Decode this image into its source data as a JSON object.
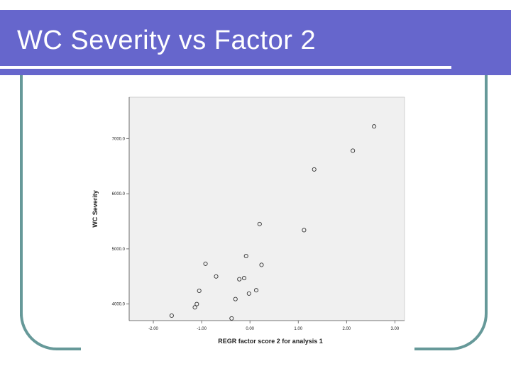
{
  "slide": {
    "title": "WC Severity vs Factor 2"
  },
  "colors": {
    "title_bar": "#6666cc",
    "frame": "#669999",
    "plot_background": "#f0f0f0",
    "marker": "#333333"
  },
  "chart_data": {
    "type": "scatter",
    "title": "",
    "xlabel": "REGR factor score   2 for analysis 1",
    "ylabel": "WC Severity",
    "xlim": [
      -2.5,
      3.2
    ],
    "ylim": [
      3700,
      7750
    ],
    "x_ticks": [
      -2.0,
      -1.0,
      0.0,
      1.0,
      2.0,
      3.0
    ],
    "x_tick_labels": [
      "-2.00",
      "-1.00",
      "0.00",
      "1.00",
      "2.00",
      "3.00"
    ],
    "y_ticks": [
      4000,
      5000,
      6000,
      7000
    ],
    "y_tick_labels": [
      "4000.0",
      "5000.0",
      "6000.0",
      "7000.0"
    ],
    "grid": false,
    "marker": "hollow-circle",
    "points": [
      {
        "x": -1.62,
        "y": 3790
      },
      {
        "x": -1.14,
        "y": 3940
      },
      {
        "x": -1.1,
        "y": 4000
      },
      {
        "x": -1.05,
        "y": 4240
      },
      {
        "x": -0.92,
        "y": 4730
      },
      {
        "x": -0.7,
        "y": 4500
      },
      {
        "x": -0.38,
        "y": 3740
      },
      {
        "x": -0.3,
        "y": 4090
      },
      {
        "x": -0.22,
        "y": 4450
      },
      {
        "x": -0.12,
        "y": 4470
      },
      {
        "x": -0.08,
        "y": 4870
      },
      {
        "x": -0.02,
        "y": 4190
      },
      {
        "x": 0.13,
        "y": 4250
      },
      {
        "x": 0.2,
        "y": 5450
      },
      {
        "x": 0.24,
        "y": 4710
      },
      {
        "x": 1.12,
        "y": 5340
      },
      {
        "x": 1.33,
        "y": 6440
      },
      {
        "x": 2.13,
        "y": 6780
      },
      {
        "x": 2.57,
        "y": 7220
      }
    ]
  }
}
